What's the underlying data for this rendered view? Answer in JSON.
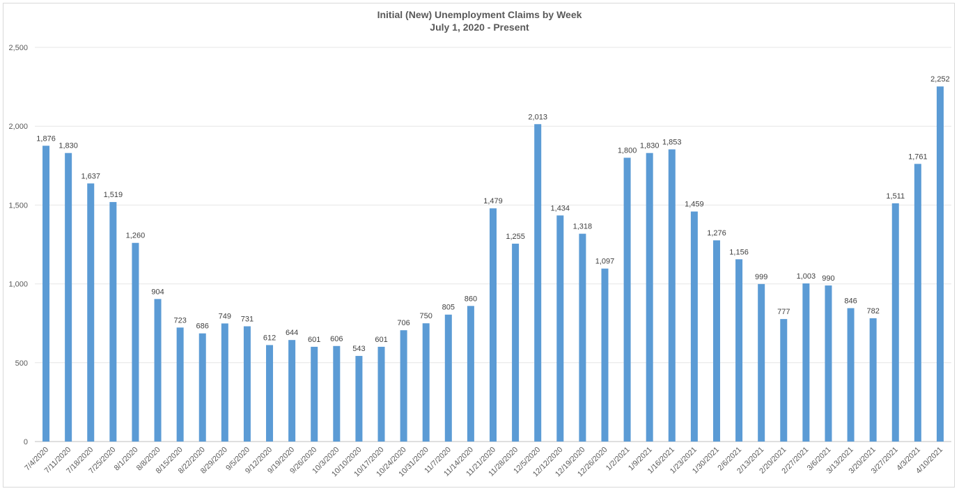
{
  "chart_data": {
    "type": "bar",
    "title": "Initial (New) Unemployment Claims by Week",
    "subtitle": "July 1, 2020 - Present",
    "xlabel": "",
    "ylabel": "",
    "ylim": [
      0,
      2500
    ],
    "yticks": [
      0,
      500,
      1000,
      1500,
      2000,
      2500
    ],
    "ytick_labels": [
      "0",
      "500",
      "1,000",
      "1,500",
      "2,000",
      "2,500"
    ],
    "grid": true,
    "bar_color": "#5b9bd5",
    "categories": [
      "7/4/2020",
      "7/11/2020",
      "7/18/2020",
      "7/25/2020",
      "8/1/2020",
      "8/8/2020",
      "8/15/2020",
      "8/22/2020",
      "8/29/2020",
      "9/5/2020",
      "9/12/2020",
      "9/19/2020",
      "9/26/2020",
      "10/3/2020",
      "10/10/2020",
      "10/17/2020",
      "10/24/2020",
      "10/31/2020",
      "11/7/2020",
      "11/14/2020",
      "11/21/2020",
      "11/28/2020",
      "12/5/2020",
      "12/12/2020",
      "12/19/2020",
      "12/26/2020",
      "1/2/2021",
      "1/9/2021",
      "1/16/2021",
      "1/23/2021",
      "1/30/2021",
      "2/6/2021",
      "2/13/2021",
      "2/20/2021",
      "2/27/2021",
      "3/6/2021",
      "3/13/2021",
      "3/20/2021",
      "3/27/2021",
      "4/3/2021",
      "4/10/2021"
    ],
    "values": [
      1876,
      1830,
      1637,
      1519,
      1260,
      904,
      723,
      686,
      749,
      731,
      612,
      644,
      601,
      606,
      543,
      601,
      706,
      750,
      805,
      860,
      1479,
      1255,
      2013,
      1434,
      1318,
      1097,
      1800,
      1830,
      1853,
      1459,
      1276,
      1156,
      999,
      777,
      1003,
      990,
      846,
      782,
      1511,
      1761,
      2252
    ],
    "value_labels": [
      "1,876",
      "1,830",
      "1,637",
      "1,519",
      "1,260",
      "904",
      "723",
      "686",
      "749",
      "731",
      "612",
      "644",
      "601",
      "606",
      "543",
      "601",
      "706",
      "750",
      "805",
      "860",
      "1,479",
      "1,255",
      "2,013",
      "1,434",
      "1,318",
      "1,097",
      "1,800",
      "1,830",
      "1,853",
      "1,459",
      "1,276",
      "1,156",
      "999",
      "777",
      "1,003",
      "990",
      "846",
      "782",
      "1,511",
      "1,761",
      "2,252"
    ]
  }
}
